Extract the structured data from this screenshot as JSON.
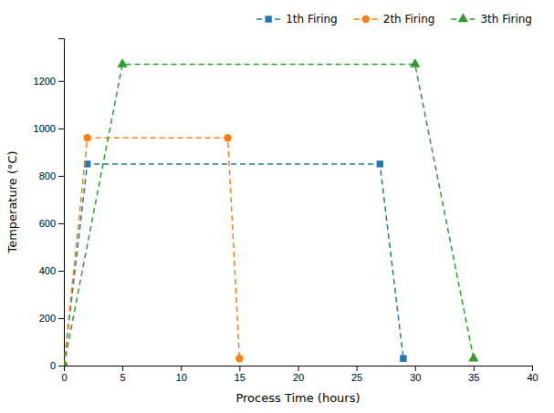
{
  "chart_data": {
    "type": "line",
    "x_label": "Process Time (hours)",
    "y_label": "Temperature (°C)",
    "series": [
      {
        "name": "1th Firing",
        "x": [
          0,
          2,
          27,
          29
        ],
        "values": [
          0,
          850,
          850,
          30
        ],
        "marker": "square",
        "line_style": "dashed"
      },
      {
        "name": "2th Firing",
        "x": [
          0,
          2,
          14,
          15
        ],
        "values": [
          0,
          960,
          960,
          30
        ],
        "marker": "circle",
        "line_style": "dashed"
      },
      {
        "name": "3th Firing",
        "x": [
          0,
          5,
          30,
          35
        ],
        "values": [
          0,
          1270,
          1270,
          30
        ],
        "marker": "triangle",
        "line_style": "dashed"
      }
    ],
    "xlim": [
      0,
      40
    ],
    "ylim": [
      0,
      1380
    ],
    "xticks": [
      0,
      5,
      10,
      15,
      20,
      25,
      30,
      35,
      40
    ],
    "yticks": [
      0,
      200,
      400,
      600,
      800,
      1000,
      1200
    ],
    "legend": "upper-right",
    "grid": false
  }
}
